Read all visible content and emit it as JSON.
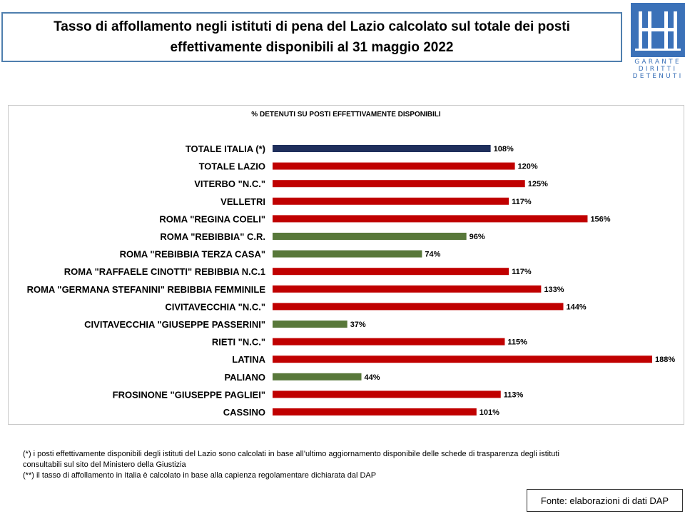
{
  "header": {
    "title_line1": "Tasso di affollamento negli istituti di pena del Lazio calcolato sul totale dei posti",
    "title_line2": "effettivamente disponibili al 31 maggio 2022"
  },
  "logo": {
    "line1": "GARANTE",
    "line2": "DIRITTI",
    "line3": "DETENUTI",
    "color": "#3b71b8"
  },
  "colors": {
    "total_italia": "#1f2f5c",
    "over_capacity": "#c00000",
    "under_capacity": "#58783a"
  },
  "chart_data": {
    "type": "bar",
    "orientation": "horizontal",
    "title": "% DETENUTI SU POSTI EFFETTIVAMENTE DISPONIBILI",
    "categories": [
      "TOTALE ITALIA (*)",
      "TOTALE LAZIO",
      "VITERBO \"N.C.\"",
      "VELLETRI",
      "ROMA \"REGINA COELI\"",
      "ROMA \"REBIBBIA\" C.R.",
      "ROMA \"REBIBBIA TERZA CASA\"",
      "ROMA \"RAFFAELE CINOTTI\" REBIBBIA N.C.1",
      "ROMA \"GERMANA STEFANINI\" REBIBBIA FEMMINILE",
      "CIVITAVECCHIA \"N.C.\"",
      "CIVITAVECCHIA \"GIUSEPPE PASSERINI\"",
      "RIETI \"N.C.\"",
      "LATINA",
      "PALIANO",
      "FROSINONE \"GIUSEPPE PAGLIEI\"",
      "CASSINO"
    ],
    "values": [
      108,
      120,
      125,
      117,
      156,
      96,
      74,
      117,
      133,
      144,
      37,
      115,
      188,
      44,
      113,
      101
    ],
    "value_labels": [
      "108%",
      "120%",
      "125%",
      "117%",
      "156%",
      "96%",
      "74%",
      "117%",
      "133%",
      "144%",
      "37%",
      "115%",
      "188%",
      "44%",
      "113%",
      "101%"
    ],
    "bar_colors": [
      "#1f2f5c",
      "#c00000",
      "#c00000",
      "#c00000",
      "#c00000",
      "#58783a",
      "#58783a",
      "#c00000",
      "#c00000",
      "#c00000",
      "#58783a",
      "#c00000",
      "#c00000",
      "#58783a",
      "#c00000",
      "#c00000"
    ],
    "xlim": [
      0,
      188
    ],
    "grid": false,
    "legend": "none"
  },
  "notes": {
    "line1": "(*) i posti effettivamente disponibili  degli istituti del Lazio sono  calcolati in base all’ultimo aggiornamento disponibile  delle schede  di trasparenza degli istituti",
    "line2": "consultabili  sul sito del Ministero della Giustizia",
    "line3": "(**) il tasso di affollamento  in Italia è calcolato in base alla capienza regolamentare dichiarata dal DAP"
  },
  "source": {
    "text": "Fonte: elaborazioni di dati DAP"
  }
}
